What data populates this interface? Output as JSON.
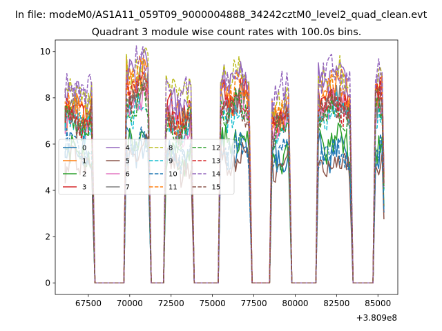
{
  "figure": {
    "suptitle": "In file: modeM0/AS1A11_059T09_9000004888_34242cztM0_level2_quad_clean.evt",
    "offset_text": "+3.809e8"
  },
  "chart_data": {
    "type": "line",
    "title": "Quadrant 3 module wise count rates with 100.0s bins.",
    "xlabel": "",
    "ylabel": "",
    "xlim": [
      65500,
      86200
    ],
    "ylim": [
      -0.5,
      10.5
    ],
    "x_offset": 380900000,
    "x_ticks": [
      67500,
      70000,
      72500,
      75000,
      77500,
      80000,
      82500,
      85000
    ],
    "x_tick_labels": [
      "67500",
      "70000",
      "72500",
      "75000",
      "77500",
      "80000",
      "82500",
      "85000"
    ],
    "y_ticks": [
      0,
      2,
      4,
      6,
      8,
      10
    ],
    "y_tick_labels": [
      "0",
      "2",
      "4",
      "6",
      "8",
      "10"
    ],
    "grid": false,
    "legend_position": "center-left",
    "legend_columns": 4,
    "segments": [
      {
        "start": 66100,
        "end": 67750
      },
      {
        "start": 69800,
        "end": 71150
      },
      {
        "start": 72200,
        "end": 73750
      },
      {
        "start": 75500,
        "end": 77250
      },
      {
        "start": 78600,
        "end": 79650
      },
      {
        "start": 81400,
        "end": 83350
      },
      {
        "start": 84850,
        "end": 85300
      }
    ],
    "series": [
      {
        "name": "0",
        "color": "#1f77b4",
        "dash": "solid",
        "levels": [
          5.7,
          5.9,
          5.6,
          5.7,
          5.6,
          5.7,
          5.5
        ]
      },
      {
        "name": "1",
        "color": "#ff7f0e",
        "dash": "solid",
        "levels": [
          7.4,
          8.9,
          7.2,
          8.2,
          7.3,
          8.4,
          8.6
        ]
      },
      {
        "name": "2",
        "color": "#2ca02c",
        "dash": "solid",
        "levels": [
          5.8,
          6.2,
          5.4,
          6.2,
          5.5,
          6.0,
          6.0
        ]
      },
      {
        "name": "3",
        "color": "#d62728",
        "dash": "solid",
        "levels": [
          7.2,
          8.5,
          7.4,
          8.1,
          7.2,
          7.9,
          8.3
        ]
      },
      {
        "name": "4",
        "color": "#9467bd",
        "dash": "solid",
        "levels": [
          8.2,
          9.2,
          7.6,
          8.8,
          7.8,
          8.8,
          8.6
        ]
      },
      {
        "name": "5",
        "color": "#8c564b",
        "dash": "solid",
        "levels": [
          5.2,
          5.5,
          5.0,
          5.3,
          5.1,
          5.2,
          5.0
        ]
      },
      {
        "name": "6",
        "color": "#e377c2",
        "dash": "solid",
        "levels": [
          6.9,
          7.9,
          6.8,
          7.6,
          6.8,
          7.6,
          7.5
        ]
      },
      {
        "name": "7",
        "color": "#7f7f7f",
        "dash": "solid",
        "levels": [
          7.3,
          8.4,
          7.0,
          7.8,
          7.1,
          7.8,
          7.8
        ]
      },
      {
        "name": "8",
        "color": "#bcbd22",
        "dash": "dashed",
        "levels": [
          8.0,
          9.3,
          8.2,
          9.1,
          8.1,
          9.1,
          8.9
        ]
      },
      {
        "name": "9",
        "color": "#17becf",
        "dash": "dashed",
        "levels": [
          6.9,
          7.6,
          6.6,
          7.4,
          6.6,
          7.4,
          7.2
        ]
      },
      {
        "name": "10",
        "color": "#1f77b4",
        "dash": "dashed",
        "levels": [
          5.9,
          5.8,
          5.5,
          5.8,
          5.6,
          5.7,
          5.6
        ]
      },
      {
        "name": "11",
        "color": "#ff7f0e",
        "dash": "dashed",
        "levels": [
          7.5,
          8.9,
          7.1,
          8.3,
          7.3,
          8.5,
          8.6
        ]
      },
      {
        "name": "12",
        "color": "#2ca02c",
        "dash": "dashed",
        "levels": [
          6.9,
          7.8,
          6.6,
          7.6,
          6.7,
          7.4,
          7.4
        ]
      },
      {
        "name": "13",
        "color": "#d62728",
        "dash": "dashed",
        "levels": [
          7.1,
          8.3,
          7.1,
          7.8,
          7.0,
          7.7,
          7.9
        ]
      },
      {
        "name": "14",
        "color": "#9467bd",
        "dash": "dashed",
        "levels": [
          8.4,
          9.5,
          8.0,
          9.0,
          8.2,
          9.1,
          8.8
        ]
      },
      {
        "name": "15",
        "color": "#8c564b",
        "dash": "dashed",
        "levels": [
          7.0,
          8.1,
          6.9,
          7.6,
          6.8,
          7.6,
          7.6
        ]
      }
    ]
  }
}
